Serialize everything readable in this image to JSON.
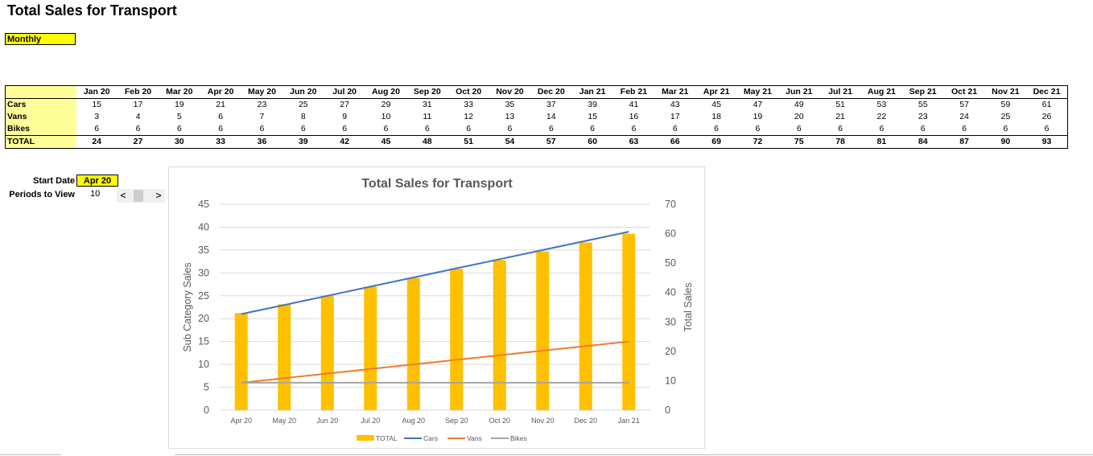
{
  "sheet": {
    "title": "Total Sales for Transport",
    "period_type": "Monthly"
  },
  "table": {
    "months": [
      "Jan 20",
      "Feb 20",
      "Mar 20",
      "Apr 20",
      "May 20",
      "Jun 20",
      "Jul 20",
      "Aug 20",
      "Sep 20",
      "Oct 20",
      "Nov 20",
      "Dec 20",
      "Jan 21",
      "Feb 21",
      "Mar 21",
      "Apr 21",
      "May 21",
      "Jun 21",
      "Jul 21",
      "Aug 21",
      "Sep 21",
      "Oct 21",
      "Nov 21",
      "Dec 21"
    ],
    "rows": [
      {
        "label": "Cars",
        "values": [
          15,
          17,
          19,
          21,
          23,
          25,
          27,
          29,
          31,
          33,
          35,
          37,
          39,
          41,
          43,
          45,
          47,
          49,
          51,
          53,
          55,
          57,
          59,
          61
        ]
      },
      {
        "label": "Vans",
        "values": [
          3,
          4,
          5,
          6,
          7,
          8,
          9,
          10,
          11,
          12,
          13,
          14,
          15,
          16,
          17,
          18,
          19,
          20,
          21,
          22,
          23,
          24,
          25,
          26
        ]
      },
      {
        "label": "Bikes",
        "values": [
          6,
          6,
          6,
          6,
          6,
          6,
          6,
          6,
          6,
          6,
          6,
          6,
          6,
          6,
          6,
          6,
          6,
          6,
          6,
          6,
          6,
          6,
          6,
          6
        ]
      },
      {
        "label": "TOTAL",
        "values": [
          24,
          27,
          30,
          33,
          36,
          39,
          42,
          45,
          48,
          51,
          54,
          57,
          60,
          63,
          66,
          69,
          72,
          75,
          78,
          81,
          84,
          87,
          90,
          93
        ]
      }
    ]
  },
  "controls": {
    "start_date_label": "Start Date",
    "start_date_value": "Apr 20",
    "periods_label": "Periods to View",
    "periods_value": "10",
    "scroll_left": "<",
    "scroll_right": ">"
  },
  "colors": {
    "yellow": "#ffff00",
    "light_yellow": "#ffff99",
    "total_bar": "#ffc000",
    "cars": "#4472c4",
    "vans": "#ed7d31",
    "bikes": "#a5a5a5"
  },
  "chart_data": {
    "type": "bar",
    "title": "Total Sales for Transport",
    "categories": [
      "Apr 20",
      "May 20",
      "Jun 20",
      "Jul 20",
      "Aug 20",
      "Sep 20",
      "Oct 20",
      "Nov 20",
      "Dec 20",
      "Jan 21"
    ],
    "ylabel": "Sub Category Sales",
    "y2label": "Total Sales",
    "ylim": [
      0,
      45
    ],
    "y2lim": [
      0,
      70
    ],
    "yticks": [
      0,
      5,
      10,
      15,
      20,
      25,
      30,
      35,
      40,
      45
    ],
    "y2ticks": [
      0,
      10,
      20,
      30,
      40,
      50,
      60,
      70
    ],
    "legend_position": "bottom",
    "series": [
      {
        "name": "TOTAL",
        "type": "bar",
        "axis": "secondary",
        "color": "#ffc000",
        "values": [
          33,
          36,
          39,
          42,
          45,
          48,
          51,
          54,
          57,
          60
        ]
      },
      {
        "name": "Cars",
        "type": "line",
        "axis": "primary",
        "color": "#4472c4",
        "values": [
          21,
          23,
          25,
          27,
          29,
          31,
          33,
          35,
          37,
          39
        ]
      },
      {
        "name": "Vans",
        "type": "line",
        "axis": "primary",
        "color": "#ed7d31",
        "values": [
          6,
          7,
          8,
          9,
          10,
          11,
          12,
          13,
          14,
          15
        ]
      },
      {
        "name": "Bikes",
        "type": "line",
        "axis": "primary",
        "color": "#a5a5a5",
        "values": [
          6,
          6,
          6,
          6,
          6,
          6,
          6,
          6,
          6,
          6
        ]
      }
    ]
  }
}
